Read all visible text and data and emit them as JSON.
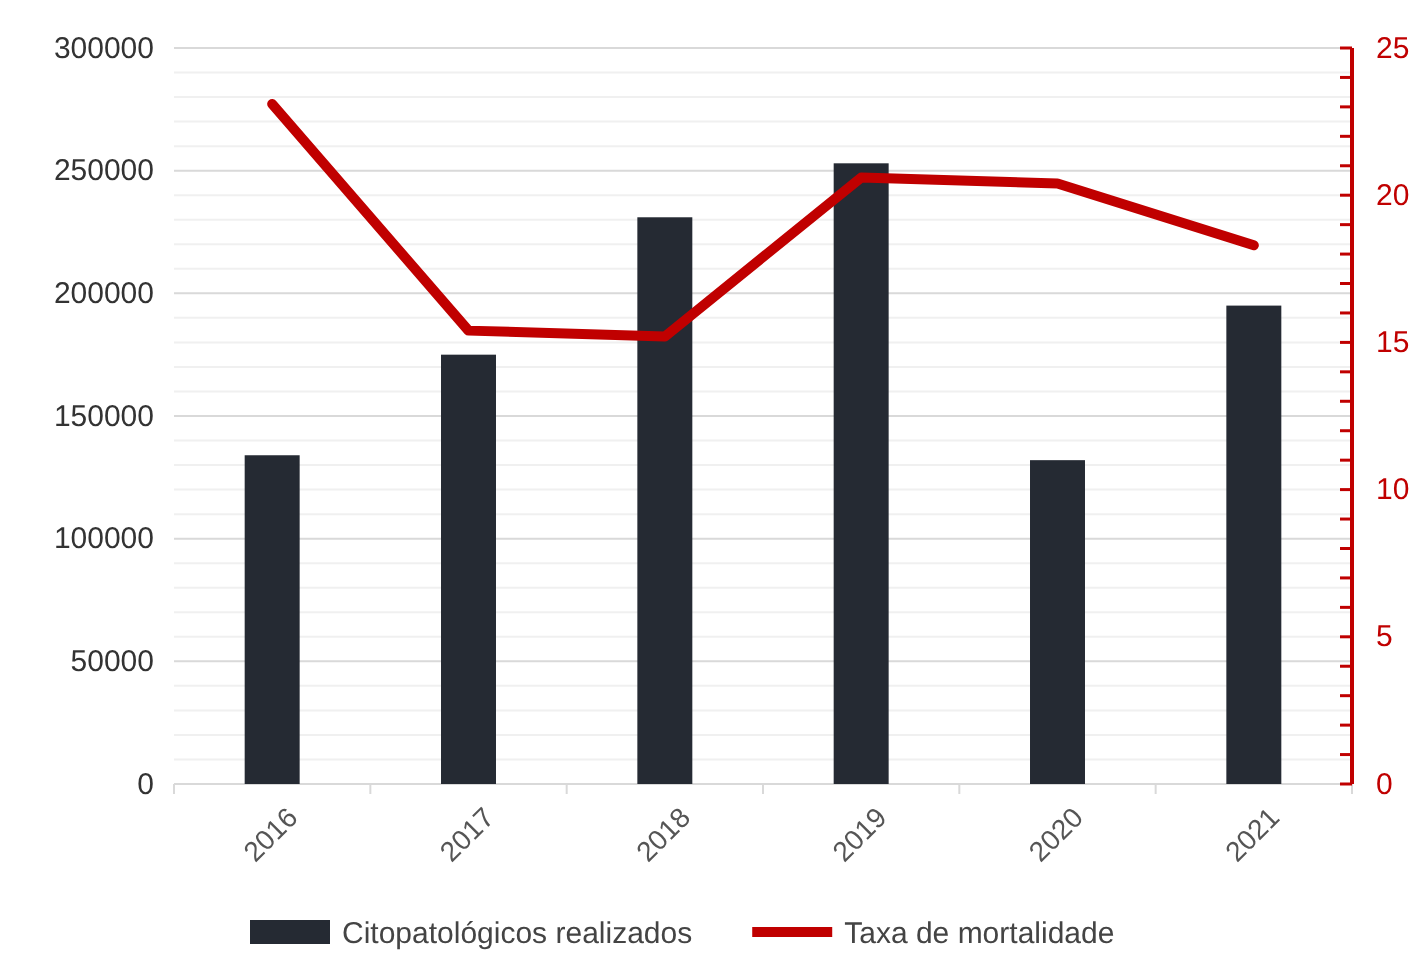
{
  "chart_data": {
    "type": "bar",
    "categories": [
      "2016",
      "2017",
      "2018",
      "2019",
      "2020",
      "2021"
    ],
    "series": [
      {
        "name": "Citopatológicos realizados",
        "color": "#252a33",
        "values": [
          134000,
          175000,
          231000,
          253000,
          132000,
          195000
        ]
      },
      {
        "name": "Taxa de mortalidade",
        "type": "line",
        "axis": "y2",
        "color": "#c00000",
        "values": [
          23.1,
          15.4,
          15.2,
          20.6,
          20.4,
          18.3
        ]
      }
    ],
    "ylim": [
      0,
      300000
    ],
    "yticks": [
      0,
      {
        "value": 10000,
        "label": null
      },
      {
        "value": 20000,
        "label": null
      },
      {
        "value": 30000,
        "label": null
      },
      {
        "value": 40000,
        "label": null
      },
      50000,
      {
        "value": 60000,
        "label": null
      },
      {
        "value": 70000,
        "label": null
      },
      {
        "value": 80000,
        "label": null
      },
      {
        "value": 90000,
        "label": null
      },
      100000,
      {
        "value": 110000,
        "label": null
      },
      {
        "value": 120000,
        "label": null
      },
      {
        "value": 130000,
        "label": null
      },
      {
        "value": 140000,
        "label": null
      },
      150000,
      {
        "value": 160000,
        "label": null
      },
      {
        "value": 170000,
        "label": null
      },
      {
        "value": 180000,
        "label": null
      },
      {
        "value": 190000,
        "label": null
      },
      200000,
      {
        "value": 210000,
        "label": null
      },
      {
        "value": 220000,
        "label": null
      },
      {
        "value": 230000,
        "label": null
      },
      {
        "value": 240000,
        "label": null
      },
      250000,
      {
        "value": 260000,
        "label": null
      },
      {
        "value": 270000,
        "label": null
      },
      {
        "value": 280000,
        "label": null
      },
      {
        "value": 290000,
        "label": null
      },
      300000
    ],
    "y2lim": [
      0,
      25
    ],
    "y2ticks": [
      0,
      {
        "value": 1,
        "label": null
      },
      {
        "value": 2,
        "label": null
      },
      {
        "value": 3,
        "label": null
      },
      {
        "value": 4,
        "label": null
      },
      5,
      {
        "value": 6,
        "label": null
      },
      {
        "value": 7,
        "label": null
      },
      {
        "value": 8,
        "label": null
      },
      {
        "value": 9,
        "label": null
      },
      10,
      {
        "value": 11,
        "label": null
      },
      {
        "value": 12,
        "label": null
      },
      {
        "value": 13,
        "label": null
      },
      {
        "value": 14,
        "label": null
      },
      15,
      {
        "value": 16,
        "label": null
      },
      {
        "value": 17,
        "label": null
      },
      {
        "value": 18,
        "label": null
      },
      {
        "value": 19,
        "label": null
      },
      20,
      {
        "value": 21,
        "label": null
      },
      {
        "value": 22,
        "label": null
      },
      {
        "value": 23,
        "label": null
      },
      {
        "value": 24,
        "label": null
      },
      25
    ],
    "grid": "y",
    "legend": "bottom"
  }
}
